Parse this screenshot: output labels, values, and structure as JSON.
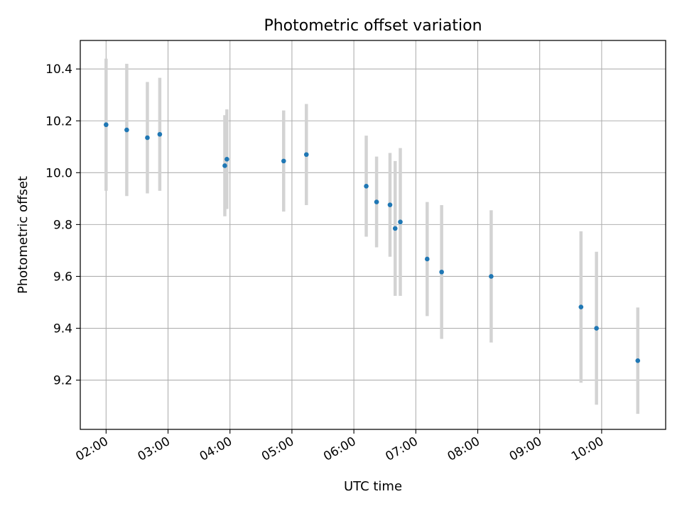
{
  "chart_data": {
    "type": "scatter",
    "title": "Photometric offset variation",
    "xlabel": "UTC time",
    "ylabel": "Photometric offset",
    "x_ticks": [
      "02:00",
      "03:00",
      "04:00",
      "05:00",
      "06:00",
      "07:00",
      "08:00",
      "09:00",
      "10:00"
    ],
    "y_ticks": [
      "9.2",
      "9.4",
      "9.6",
      "9.8",
      "10.0",
      "10.2",
      "10.4"
    ],
    "xlim": [
      "01:35",
      "11:02"
    ],
    "ylim": [
      9.01,
      10.51
    ],
    "grid": true,
    "marker_color": "#1f77b4",
    "errorbar_color": "#d3d3d3",
    "series": [
      {
        "points": [
          {
            "x": "02:00",
            "y": 10.185,
            "err": 0.255
          },
          {
            "x": "02:20",
            "y": 10.165,
            "err": 0.255
          },
          {
            "x": "02:40",
            "y": 10.135,
            "err": 0.215
          },
          {
            "x": "02:52",
            "y": 10.148,
            "err": 0.218
          },
          {
            "x": "03:55",
            "y": 10.027,
            "err": 0.195
          },
          {
            "x": "03:57",
            "y": 10.052,
            "err": 0.192
          },
          {
            "x": "04:52",
            "y": 10.045,
            "err": 0.195
          },
          {
            "x": "05:14",
            "y": 10.07,
            "err": 0.195
          },
          {
            "x": "06:12",
            "y": 9.948,
            "err": 0.195
          },
          {
            "x": "06:22",
            "y": 9.887,
            "err": 0.175
          },
          {
            "x": "06:35",
            "y": 9.876,
            "err": 0.2
          },
          {
            "x": "06:40",
            "y": 9.785,
            "err": 0.26
          },
          {
            "x": "06:45",
            "y": 9.81,
            "err": 0.285
          },
          {
            "x": "07:11",
            "y": 9.667,
            "err": 0.22
          },
          {
            "x": "07:25",
            "y": 9.617,
            "err": 0.258
          },
          {
            "x": "08:13",
            "y": 9.6,
            "err": 0.255
          },
          {
            "x": "09:40",
            "y": 9.482,
            "err": 0.292
          },
          {
            "x": "09:55",
            "y": 9.4,
            "err": 0.295
          },
          {
            "x": "10:35",
            "y": 9.275,
            "err": 0.205
          }
        ]
      }
    ]
  }
}
